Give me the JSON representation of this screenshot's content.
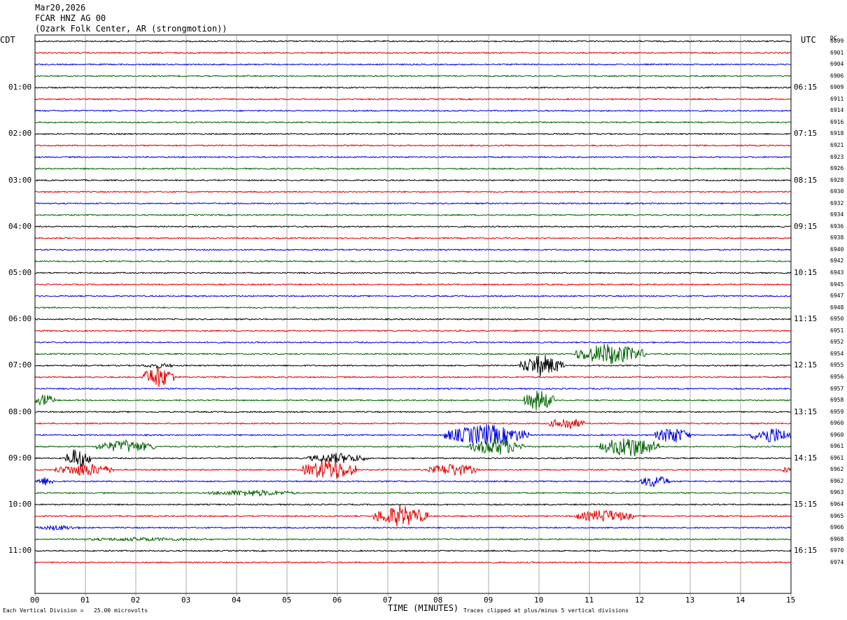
{
  "header": {
    "date": "Mar20,2026",
    "station": "FCAR HNZ AG 00",
    "location": "(Ozark Folk Center, AR (strongmotion))"
  },
  "axis": {
    "left_tz": "CDT",
    "right_tz": "UTC",
    "dc_label": "DC",
    "xlabel": "TIME (MINUTES)",
    "scale_note": "Each Vertical Division =   25.00 microvolts",
    "clip_note": "Traces clipped at plus/minus 5 vertical divisions"
  },
  "chart_data": {
    "type": "line",
    "title": "FCAR HNZ AG 00",
    "xlabel": "TIME (MINUTES)",
    "x_ticks": [
      "00",
      "01",
      "02",
      "03",
      "04",
      "05",
      "06",
      "07",
      "08",
      "09",
      "10",
      "11",
      "12",
      "13",
      "14",
      "15"
    ],
    "xlim": [
      0,
      15
    ],
    "left_time_labels": [
      "01:00",
      "02:00",
      "03:00",
      "04:00",
      "05:00",
      "06:00",
      "07:00",
      "08:00",
      "09:00",
      "10:00",
      "11:00"
    ],
    "right_time_labels": [
      "06:15",
      "07:15",
      "08:15",
      "09:15",
      "10:15",
      "11:15",
      "12:15",
      "13:15",
      "14:15",
      "15:15",
      "16:15"
    ],
    "dc_values": [
      "6899",
      "6901",
      "6904",
      "6906",
      "6909",
      "6911",
      "6914",
      "6916",
      "6918",
      "6921",
      "6923",
      "6926",
      "6928",
      "6930",
      "6932",
      "6934",
      "6936",
      "6938",
      "6940",
      "6942",
      "6943",
      "6945",
      "6947",
      "6948",
      "6950",
      "6951",
      "6952",
      "6954",
      "6955",
      "6956",
      "6957",
      "6958",
      "6959",
      "6960",
      "6960",
      "6961",
      "6961",
      "6962",
      "6962",
      "6963",
      "6964",
      "6965",
      "6966",
      "6968",
      "6970",
      "6974"
    ],
    "trace_colors": [
      "#000000",
      "#e00000",
      "#0000e0",
      "#006400"
    ],
    "grid": true,
    "events": [
      {
        "trace": 28,
        "start": 9.6,
        "end": 10.5,
        "amp": 5
      },
      {
        "trace": 28,
        "start": 2.1,
        "end": 2.8,
        "amp": 1.2
      },
      {
        "trace": 29,
        "start": 2.1,
        "end": 2.8,
        "amp": 5
      },
      {
        "trace": 27,
        "start": 10.7,
        "end": 12.1,
        "amp": 5
      },
      {
        "trace": 31,
        "start": 0.0,
        "end": 0.4,
        "amp": 3
      },
      {
        "trace": 31,
        "start": 9.7,
        "end": 10.3,
        "amp": 5
      },
      {
        "trace": 34,
        "start": 8.1,
        "end": 9.8,
        "amp": 5
      },
      {
        "trace": 34,
        "start": 12.3,
        "end": 13.0,
        "amp": 4
      },
      {
        "trace": 34,
        "start": 14.2,
        "end": 15.0,
        "amp": 4
      },
      {
        "trace": 33,
        "start": 10.2,
        "end": 10.9,
        "amp": 3
      },
      {
        "trace": 35,
        "start": 1.2,
        "end": 2.4,
        "amp": 3
      },
      {
        "trace": 35,
        "start": 8.6,
        "end": 9.7,
        "amp": 4
      },
      {
        "trace": 35,
        "start": 11.2,
        "end": 12.4,
        "amp": 5
      },
      {
        "trace": 36,
        "start": 0.6,
        "end": 1.1,
        "amp": 5
      },
      {
        "trace": 36,
        "start": 5.4,
        "end": 6.6,
        "amp": 2.5
      },
      {
        "trace": 37,
        "start": 0.4,
        "end": 1.6,
        "amp": 3
      },
      {
        "trace": 37,
        "start": 5.3,
        "end": 6.4,
        "amp": 5
      },
      {
        "trace": 37,
        "start": 7.8,
        "end": 8.8,
        "amp": 3
      },
      {
        "trace": 37,
        "start": 14.8,
        "end": 15.0,
        "amp": 1.5
      },
      {
        "trace": 38,
        "start": 0.0,
        "end": 0.4,
        "amp": 2
      },
      {
        "trace": 38,
        "start": 12.0,
        "end": 12.6,
        "amp": 3
      },
      {
        "trace": 39,
        "start": 3.4,
        "end": 5.2,
        "amp": 1.5
      },
      {
        "trace": 41,
        "start": 6.7,
        "end": 7.8,
        "amp": 5
      },
      {
        "trace": 41,
        "start": 10.7,
        "end": 11.9,
        "amp": 3
      },
      {
        "trace": 42,
        "start": 0.0,
        "end": 0.9,
        "amp": 1.2
      },
      {
        "trace": 43,
        "start": 0.7,
        "end": 3.6,
        "amp": 0.9
      }
    ]
  }
}
